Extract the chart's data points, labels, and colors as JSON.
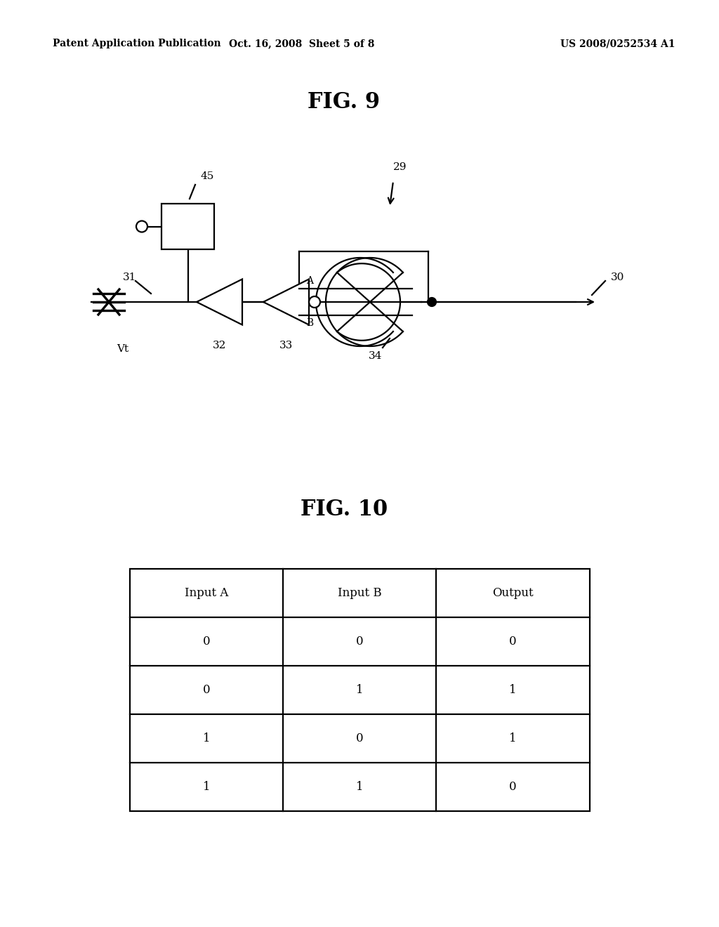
{
  "bg_color": "#ffffff",
  "header_left": "Patent Application Publication",
  "header_mid": "Oct. 16, 2008  Sheet 5 of 8",
  "header_right": "US 2008/0252534 A1",
  "fig9_title": "FIG. 9",
  "fig10_title": "FIG. 10",
  "table_headers": [
    "Input A",
    "Input B",
    "Output"
  ],
  "table_rows": [
    [
      "0",
      "0",
      "0"
    ],
    [
      "0",
      "1",
      "1"
    ],
    [
      "1",
      "0",
      "1"
    ],
    [
      "1",
      "1",
      "0"
    ]
  ]
}
